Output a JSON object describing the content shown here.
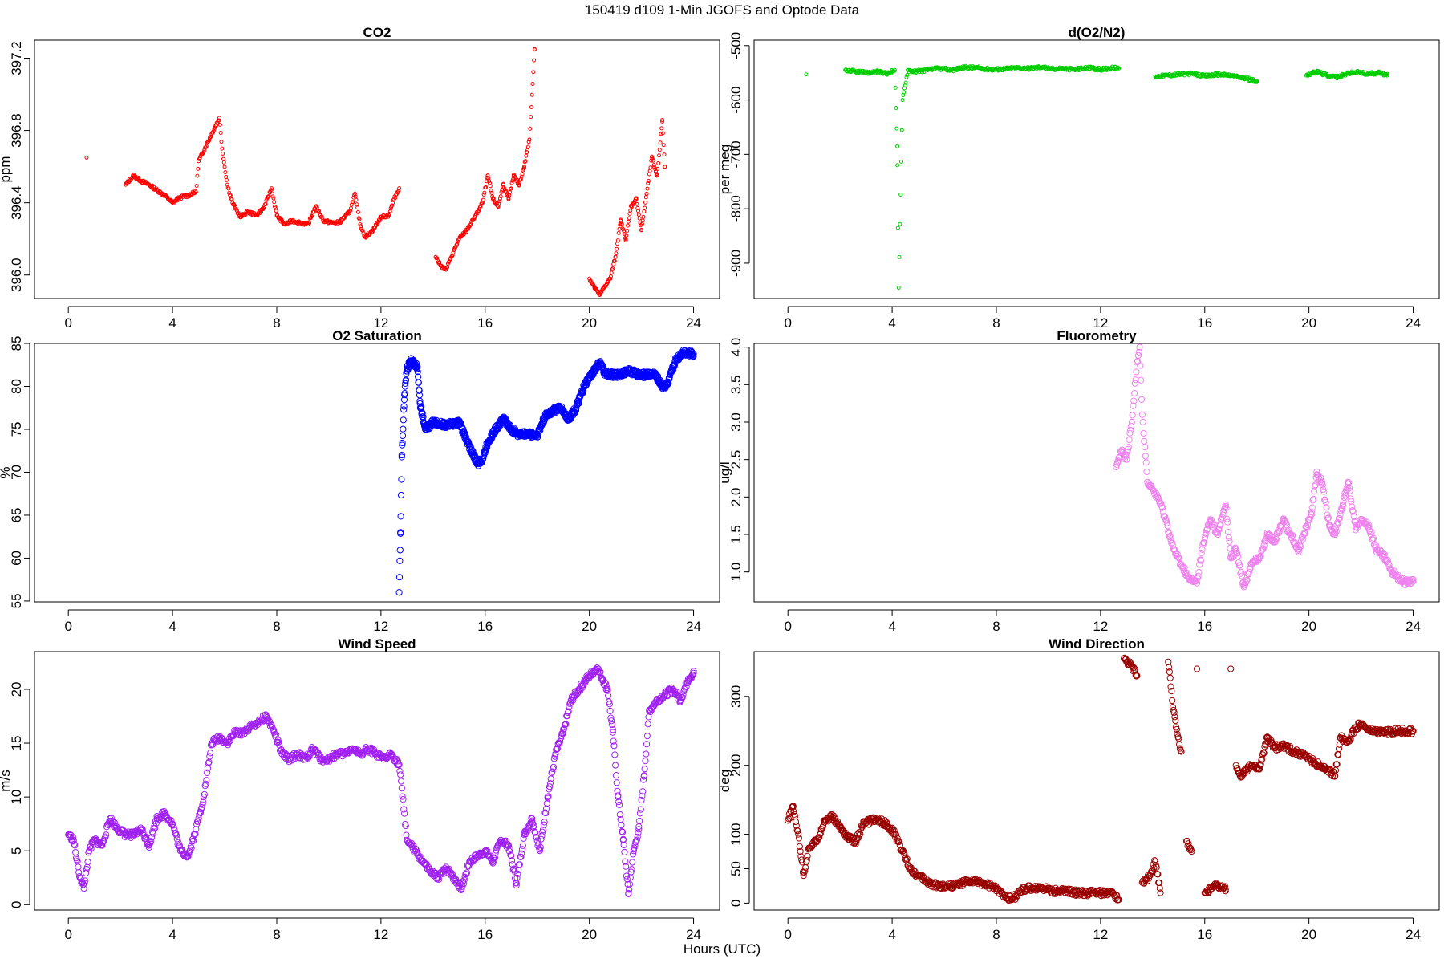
{
  "title": "150419   d109   1-Min  JGOFS and Optode Data",
  "xlabel": "Hours (UTC)",
  "chart_data": [
    {
      "id": "co2",
      "type": "scatter",
      "title": "CO2",
      "ylabel": "ppm",
      "color": "#ff0000",
      "marker": "small-open-circle",
      "xlim": [
        -1.3,
        25
      ],
      "ylim": [
        395.87,
        397.3
      ],
      "xticks": [
        0,
        4,
        8,
        12,
        16,
        20,
        24
      ],
      "yticks": [
        396.0,
        396.4,
        396.8,
        397.2
      ],
      "ytick_labels": [
        "396.0",
        "396.4",
        "396.8",
        "397.2"
      ],
      "series": [
        {
          "x": [
            0.7,
            2.2,
            2.5,
            2.8,
            3.1,
            3.4,
            3.7,
            4.0,
            4.3,
            4.6,
            4.9,
            5.0,
            5.8,
            5.9,
            6.1,
            6.3,
            6.6,
            6.9,
            7.2,
            7.5,
            7.8,
            8.0,
            8.3,
            8.6,
            8.9,
            9.2,
            9.5,
            9.8,
            10.1,
            10.4,
            10.8,
            11.0,
            11.2,
            11.4,
            11.7,
            12.0,
            12.3,
            12.5,
            12.7,
            14.1,
            14.3,
            14.5,
            14.7,
            15.0,
            15.3,
            15.6,
            15.9,
            16.1,
            16.3,
            16.5,
            16.7,
            16.9,
            17.1,
            17.3,
            17.5,
            17.7,
            17.9,
            20.0,
            20.2,
            20.4,
            20.6,
            20.8,
            21.0,
            21.2,
            21.4,
            21.6,
            21.8,
            22.0,
            22.2,
            22.4,
            22.6,
            22.8,
            22.9
          ],
          "y": [
            396.65,
            396.5,
            396.55,
            396.52,
            396.5,
            396.47,
            396.44,
            396.4,
            396.43,
            396.44,
            396.46,
            396.63,
            396.87,
            396.7,
            396.5,
            396.4,
            396.32,
            396.35,
            396.33,
            396.37,
            396.48,
            396.33,
            396.28,
            396.3,
            396.29,
            396.28,
            396.38,
            396.3,
            396.29,
            396.29,
            396.35,
            396.45,
            396.28,
            396.21,
            396.25,
            396.32,
            396.33,
            396.42,
            396.48,
            396.1,
            396.05,
            396.03,
            396.1,
            396.2,
            396.25,
            396.32,
            396.4,
            396.55,
            396.42,
            396.38,
            396.5,
            396.42,
            396.55,
            396.5,
            396.6,
            396.75,
            397.25,
            395.98,
            395.93,
            395.89,
            395.94,
            395.98,
            396.1,
            396.3,
            396.2,
            396.38,
            396.42,
            396.25,
            396.45,
            396.65,
            396.55,
            396.85,
            396.6
          ]
        }
      ]
    },
    {
      "id": "do2n2",
      "type": "scatter",
      "title": "d(O2/N2)",
      "ylabel": "per meg",
      "color": "#00cc00",
      "marker": "small-open-circle",
      "xlim": [
        -1.3,
        25
      ],
      "ylim": [
        -965,
        -490
      ],
      "xticks": [
        0,
        4,
        8,
        12,
        16,
        20,
        24
      ],
      "yticks": [
        -900,
        -800,
        -700,
        -600,
        -500
      ],
      "ytick_labels": [
        "-900",
        "-800",
        "-700",
        "-600",
        "-500"
      ],
      "series": [
        {
          "x": [
            0.7,
            2.2,
            2.6,
            3.0,
            3.4,
            3.8,
            4.1,
            4.2,
            4.2,
            4.25,
            4.4,
            4.6,
            4.9,
            5.8,
            6.3,
            6.8,
            7.3,
            7.8,
            8.3,
            8.8,
            9.3,
            9.8,
            10.0,
            10.5,
            11.0,
            11.5,
            12.0,
            12.5,
            12.7,
            14.1,
            14.5,
            15.0,
            15.5,
            16.0,
            16.5,
            17.0,
            17.5,
            18.0,
            19.9,
            20.3,
            20.7,
            21.1,
            21.5,
            21.8,
            22.3,
            22.7,
            23.0
          ],
          "y": [
            -553,
            -545,
            -548,
            -550,
            -548,
            -552,
            -545,
            -685,
            -720,
            -945,
            -600,
            -545,
            -548,
            -542,
            -545,
            -540,
            -541,
            -544,
            -543,
            -541,
            -542,
            -539,
            -543,
            -542,
            -544,
            -541,
            -544,
            -541,
            -542,
            -557,
            -555,
            -553,
            -552,
            -556,
            -553,
            -555,
            -560,
            -565,
            -555,
            -548,
            -555,
            -558,
            -551,
            -549,
            -552,
            -550,
            -555
          ]
        }
      ]
    },
    {
      "id": "o2sat",
      "type": "scatter",
      "title": "O2 Saturation",
      "ylabel": "%",
      "color": "#0000ff",
      "marker": "open-circle",
      "xlim": [
        -1.3,
        25
      ],
      "ylim": [
        54.9,
        85
      ],
      "xticks": [
        0,
        4,
        8,
        12,
        16,
        20,
        24
      ],
      "yticks": [
        55,
        60,
        65,
        70,
        75,
        80,
        85
      ],
      "ytick_labels": [
        "55",
        "60",
        "65",
        "70",
        "75",
        "80",
        "85"
      ],
      "series": [
        {
          "x": [
            12.7,
            12.75,
            12.8,
            12.9,
            13.0,
            13.1,
            13.2,
            13.3,
            13.4,
            13.5,
            13.7,
            14.0,
            14.5,
            15.0,
            15.4,
            15.7,
            15.9,
            16.1,
            16.4,
            16.7,
            17.0,
            17.3,
            17.6,
            18.0,
            18.3,
            18.6,
            18.9,
            19.2,
            19.5,
            19.8,
            20.1,
            20.4,
            20.6,
            21.0,
            21.5,
            22.0,
            22.5,
            22.8,
            23.0,
            23.3,
            23.6,
            24.0
          ],
          "y": [
            56,
            63,
            72,
            79,
            82,
            82.8,
            83,
            82.5,
            82.3,
            78,
            75,
            75.8,
            75.5,
            75.8,
            73,
            71,
            71.5,
            73.5,
            75,
            76.3,
            75,
            74.4,
            74.5,
            74.3,
            76.5,
            77.2,
            77.5,
            76.2,
            77.5,
            80,
            81.5,
            82.8,
            81.5,
            81.3,
            81.8,
            81.3,
            81.5,
            80,
            80.2,
            83,
            84,
            83.8
          ]
        }
      ]
    },
    {
      "id": "fluor",
      "type": "scatter",
      "title": "Fluorometry",
      "ylabel": "ug/l",
      "color": "#ee82ee",
      "marker": "open-circle",
      "xlim": [
        -1.3,
        25
      ],
      "ylim": [
        0.6,
        4.05
      ],
      "xticks": [
        0,
        4,
        8,
        12,
        16,
        20,
        24
      ],
      "yticks": [
        1.0,
        1.5,
        2.0,
        2.5,
        3.0,
        3.5,
        4.0
      ],
      "ytick_labels": [
        "1.0",
        "1.5",
        "2.0",
        "2.5",
        "3.0",
        "3.5",
        "4.0"
      ],
      "series": [
        {
          "x": [
            12.6,
            12.8,
            13.0,
            13.2,
            13.4,
            13.5,
            13.6,
            13.8,
            14.0,
            14.2,
            14.5,
            14.8,
            15.1,
            15.4,
            15.7,
            15.9,
            16.2,
            16.5,
            16.8,
            17.0,
            17.2,
            17.5,
            17.8,
            18.1,
            18.4,
            18.7,
            19.0,
            19.3,
            19.6,
            19.9,
            20.1,
            20.3,
            20.5,
            20.8,
            21.0,
            21.3,
            21.5,
            21.8,
            22.0,
            22.3,
            22.6,
            22.9,
            23.2,
            23.5,
            23.8,
            24.0
          ],
          "y": [
            2.4,
            2.6,
            2.5,
            3.0,
            3.8,
            4.0,
            3.1,
            2.2,
            2.1,
            2.0,
            1.7,
            1.3,
            1.1,
            0.9,
            0.85,
            1.3,
            1.7,
            1.5,
            1.9,
            1.2,
            1.3,
            0.8,
            1.1,
            1.2,
            1.5,
            1.4,
            1.7,
            1.5,
            1.3,
            1.6,
            1.8,
            2.3,
            2.2,
            1.6,
            1.5,
            1.9,
            2.2,
            1.6,
            1.7,
            1.6,
            1.3,
            1.2,
            1.0,
            0.9,
            0.85,
            0.9
          ]
        }
      ]
    },
    {
      "id": "wspd",
      "type": "scatter",
      "title": "Wind Speed",
      "ylabel": "m/s",
      "color": "#a020f0",
      "marker": "open-circle",
      "xlim": [
        -1.3,
        25
      ],
      "ylim": [
        -0.5,
        23.5
      ],
      "xticks": [
        0,
        4,
        8,
        12,
        16,
        20,
        24
      ],
      "yticks": [
        0,
        5,
        10,
        15,
        20
      ],
      "ytick_labels": [
        "0",
        "5",
        "10",
        "15",
        "20"
      ],
      "series": [
        {
          "x": [
            0.0,
            0.2,
            0.4,
            0.6,
            0.8,
            1.0,
            1.3,
            1.6,
            1.9,
            2.2,
            2.5,
            2.8,
            3.1,
            3.4,
            3.7,
            4.0,
            4.3,
            4.6,
            4.9,
            5.2,
            5.5,
            5.8,
            6.1,
            6.4,
            6.7,
            7.0,
            7.3,
            7.6,
            7.9,
            8.2,
            8.5,
            8.8,
            9.1,
            9.4,
            9.7,
            10.0,
            10.3,
            10.6,
            10.9,
            11.2,
            11.5,
            11.8,
            12.1,
            12.4,
            12.7,
            13.0,
            13.3,
            13.6,
            13.9,
            14.2,
            14.5,
            14.8,
            15.1,
            15.4,
            15.7,
            16.0,
            16.3,
            16.6,
            16.9,
            17.2,
            17.5,
            17.8,
            18.1,
            18.4,
            18.7,
            19.0,
            19.3,
            19.6,
            19.9,
            20.1,
            20.3,
            20.5,
            20.7,
            20.9,
            21.1,
            21.3,
            21.5,
            21.7,
            21.9,
            22.1,
            22.3,
            22.6,
            22.9,
            23.2,
            23.5,
            23.8,
            24.0
          ],
          "y": [
            6.5,
            6,
            3,
            1.5,
            5,
            6,
            5.5,
            8,
            7,
            6.5,
            6.5,
            7,
            5.5,
            8,
            8.5,
            7.5,
            5,
            4.5,
            7,
            10,
            15,
            15.5,
            15,
            16,
            16,
            16.5,
            17,
            17.5,
            16,
            14,
            13.5,
            14,
            13.5,
            14.5,
            13.5,
            13.5,
            14,
            14,
            14.5,
            14,
            14.5,
            14,
            13.5,
            14,
            13,
            6,
            5,
            4,
            3,
            2.5,
            3.5,
            2.5,
            1.5,
            4,
            4.5,
            5,
            4,
            6,
            5.5,
            2,
            6.5,
            8,
            5,
            10,
            14,
            16,
            19,
            20,
            21,
            21.5,
            22,
            21,
            20,
            16,
            10,
            6,
            1,
            5,
            7,
            12,
            18,
            19,
            19.5,
            20,
            19,
            21,
            21.5
          ]
        }
      ]
    },
    {
      "id": "wdir",
      "type": "scatter",
      "title": "Wind Direction",
      "ylabel": "deg",
      "color": "#990000",
      "marker": "open-circle",
      "xlim": [
        -1.3,
        25
      ],
      "ylim": [
        -10,
        365
      ],
      "xticks": [
        0,
        4,
        8,
        12,
        16,
        20,
        24
      ],
      "yticks": [
        0,
        50,
        100,
        200,
        300
      ],
      "ytick_labels": [
        "0",
        "50",
        "100",
        "200",
        "300"
      ],
      "series": [
        {
          "x": [
            0.0,
            0.2,
            0.4,
            0.6,
            0.8,
            1.1,
            1.4,
            1.7,
            2.0,
            2.3,
            2.6,
            2.9,
            3.2,
            3.5,
            3.8,
            4.1,
            4.4,
            4.7,
            5.0,
            5.4,
            5.8,
            6.2,
            6.6,
            7.0,
            7.4,
            7.8,
            8.2,
            8.6,
            9.0,
            9.4,
            9.8,
            10.2,
            10.6,
            11.0,
            11.4,
            11.8,
            12.2,
            12.5,
            12.7,
            12.9,
            13.2,
            13.4,
            13.6,
            13.9,
            14.1,
            14.3,
            14.6,
            14.8,
            14.9,
            15.1,
            15.3,
            15.5,
            15.7,
            16.0,
            16.4,
            16.8,
            17.0,
            17.2,
            17.4,
            17.8,
            18.1,
            18.4,
            18.7,
            19.0,
            19.4,
            19.8,
            20.2,
            20.6,
            21.0,
            21.2,
            21.5,
            21.8,
            22.0,
            22.3,
            22.7,
            23.1,
            23.5,
            24.0
          ],
          "y": [
            120,
            140,
            100,
            40,
            80,
            90,
            120,
            125,
            110,
            95,
            90,
            115,
            120,
            120,
            115,
            100,
            75,
            50,
            40,
            30,
            25,
            25,
            28,
            32,
            30,
            25,
            15,
            5,
            20,
            22,
            22,
            18,
            18,
            15,
            15,
            15,
            15,
            14,
            5,
            355,
            345,
            330,
            30,
            40,
            60,
            15,
            350,
            280,
            255,
            220,
            90,
            75,
            340,
            15,
            25,
            20,
            340,
            200,
            185,
            200,
            195,
            240,
            225,
            230,
            220,
            215,
            205,
            195,
            185,
            240,
            235,
            255,
            260,
            250,
            248,
            248,
            250,
            250
          ]
        }
      ]
    }
  ]
}
